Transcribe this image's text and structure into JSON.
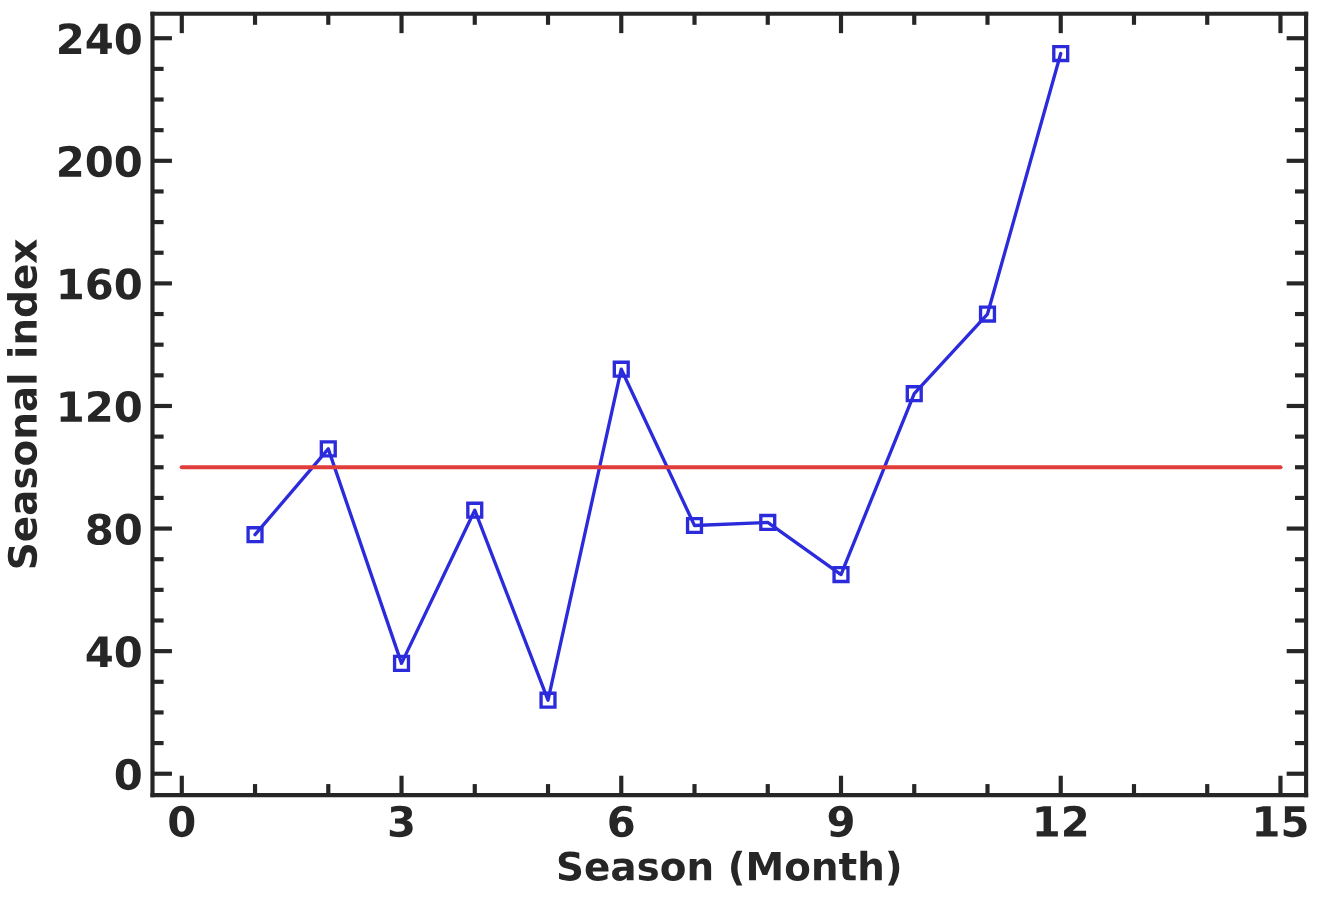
{
  "chart_data": {
    "type": "line",
    "xlabel": "Season (Month)",
    "ylabel": "Seasonal index",
    "x": [
      1,
      2,
      3,
      4,
      5,
      6,
      7,
      8,
      9,
      10,
      11,
      12
    ],
    "series": [
      {
        "color": "#2b2bdc",
        "values": [
          78,
          106,
          36,
          86,
          24,
          132,
          81,
          82,
          65,
          124,
          150,
          235
        ]
      }
    ],
    "marker": "square",
    "line_style": "solid",
    "xlim": [
      -0.4,
      15.35
    ],
    "xticks": [
      0,
      3,
      6,
      9,
      12,
      15
    ],
    "ylim": [
      -7,
      248
    ],
    "yticks": [
      0,
      40,
      80,
      120,
      160,
      200,
      240
    ],
    "ref_lines": [
      {
        "axis": "y",
        "value": 100,
        "color": "#e03c3c"
      }
    ],
    "grid": false
  }
}
